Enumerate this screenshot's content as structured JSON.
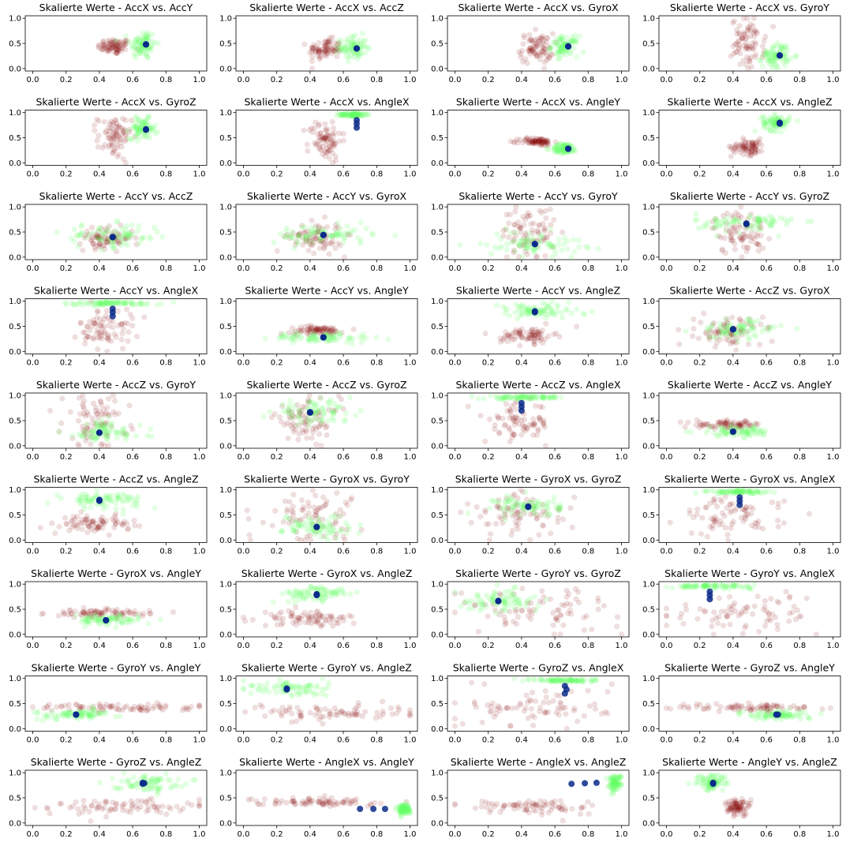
{
  "figure": {
    "colors": {
      "cluster_dark": "#800000",
      "cluster_light": "#66ff66",
      "centroid": "#0a2a8a"
    }
  },
  "chart_data": {
    "type": "scatter",
    "features": [
      "AccX",
      "AccY",
      "AccZ",
      "GyroX",
      "GyroY",
      "GyroZ",
      "AngleX",
      "AngleY",
      "AngleZ"
    ],
    "title_prefix": "Skalierte Werte - ",
    "xlim": [
      0,
      1
    ],
    "ylim": [
      0,
      1
    ],
    "xticks": [
      "0.0",
      "0.2",
      "0.4",
      "0.6",
      "0.8",
      "1.0"
    ],
    "yticks": [
      "0.0",
      "0.5",
      "1.0"
    ],
    "clusters": [
      {
        "color": "#800000",
        "center": {
          "AccX": 0.49,
          "AccY": 0.44,
          "AccZ": 0.38,
          "GyroX": 0.4,
          "GyroY": 0.5,
          "GyroZ": 0.5,
          "AngleX": 0.45,
          "AngleY": 0.42,
          "AngleZ": 0.32
        },
        "spread": {
          "AccX": 0.05,
          "AccY": 0.08,
          "AccZ": 0.1,
          "GyroX": 0.15,
          "GyroY": 0.25,
          "GyroZ": 0.22,
          "AngleX": 0.2,
          "AngleY": 0.04,
          "AngleZ": 0.08
        }
      },
      {
        "color": "#66ff66",
        "center": {
          "AccX": 0.66,
          "AccY": 0.48,
          "AccZ": 0.42,
          "GyroX": 0.44,
          "GyroY": 0.27,
          "GyroZ": 0.68,
          "AngleX": 0.96,
          "AngleY": 0.28,
          "AngleZ": 0.8
        },
        "spread": {
          "AccX": 0.04,
          "AccY": 0.15,
          "AccZ": 0.12,
          "GyroX": 0.1,
          "GyroY": 0.12,
          "GyroZ": 0.1,
          "AngleX": 0.02,
          "AngleY": 0.05,
          "AngleZ": 0.08
        }
      }
    ],
    "centroids": [
      {
        "AccX": 0.68,
        "AccY": 0.48,
        "AccZ": 0.4,
        "GyroX": 0.44,
        "GyroY": 0.26,
        "GyroZ": 0.67,
        "AngleX": 0.78,
        "AngleY": 0.28,
        "AngleZ": 0.79
      },
      {
        "AccX": 0.68,
        "AccY": 0.48,
        "AccZ": 0.4,
        "GyroX": 0.44,
        "GyroY": 0.26,
        "GyroZ": 0.66,
        "AngleX": 0.7,
        "AngleY": 0.28,
        "AngleZ": 0.78
      },
      {
        "AccX": 0.68,
        "AccY": 0.48,
        "AccZ": 0.4,
        "GyroX": 0.44,
        "GyroY": 0.26,
        "GyroZ": 0.66,
        "AngleX": 0.85,
        "AngleY": 0.28,
        "AngleZ": 0.8
      }
    ],
    "subplots": [
      {
        "title": "Skalierte Werte - AccX vs. AccY",
        "x": "AccX",
        "y": "AccY"
      },
      {
        "title": "Skalierte Werte - AccX vs. AccZ",
        "x": "AccX",
        "y": "AccZ"
      },
      {
        "title": "Skalierte Werte - AccX vs. GyroX",
        "x": "AccX",
        "y": "GyroX"
      },
      {
        "title": "Skalierte Werte - AccX vs. GyroY",
        "x": "AccX",
        "y": "GyroY"
      },
      {
        "title": "Skalierte Werte - AccX vs. GyroZ",
        "x": "AccX",
        "y": "GyroZ"
      },
      {
        "title": "Skalierte Werte - AccX vs. AngleX",
        "x": "AccX",
        "y": "AngleX"
      },
      {
        "title": "Skalierte Werte - AccX vs. AngleY",
        "x": "AccX",
        "y": "AngleY"
      },
      {
        "title": "Skalierte Werte - AccX vs. AngleZ",
        "x": "AccX",
        "y": "AngleZ"
      },
      {
        "title": "Skalierte Werte - AccY vs. AccZ",
        "x": "AccY",
        "y": "AccZ"
      },
      {
        "title": "Skalierte Werte - AccY vs. GyroX",
        "x": "AccY",
        "y": "GyroX"
      },
      {
        "title": "Skalierte Werte - AccY vs. GyroY",
        "x": "AccY",
        "y": "GyroY"
      },
      {
        "title": "Skalierte Werte - AccY vs. GyroZ",
        "x": "AccY",
        "y": "GyroZ"
      },
      {
        "title": "Skalierte Werte - AccY vs. AngleX",
        "x": "AccY",
        "y": "AngleX"
      },
      {
        "title": "Skalierte Werte - AccY vs. AngleY",
        "x": "AccY",
        "y": "AngleY"
      },
      {
        "title": "Skalierte Werte - AccY vs. AngleZ",
        "x": "AccY",
        "y": "AngleZ"
      },
      {
        "title": "Skalierte Werte - AccZ vs. GyroX",
        "x": "AccZ",
        "y": "GyroX"
      },
      {
        "title": "Skalierte Werte - AccZ vs. GyroY",
        "x": "AccZ",
        "y": "GyroY"
      },
      {
        "title": "Skalierte Werte - AccZ vs. GyroZ",
        "x": "AccZ",
        "y": "GyroZ"
      },
      {
        "title": "Skalierte Werte - AccZ vs. AngleX",
        "x": "AccZ",
        "y": "AngleX"
      },
      {
        "title": "Skalierte Werte - AccZ vs. AngleY",
        "x": "AccZ",
        "y": "AngleY"
      },
      {
        "title": "Skalierte Werte - AccZ vs. AngleZ",
        "x": "AccZ",
        "y": "AngleZ"
      },
      {
        "title": "Skalierte Werte - GyroX vs. GyroY",
        "x": "GyroX",
        "y": "GyroY"
      },
      {
        "title": "Skalierte Werte - GyroX vs. GyroZ",
        "x": "GyroX",
        "y": "GyroZ"
      },
      {
        "title": "Skalierte Werte - GyroX vs. AngleX",
        "x": "GyroX",
        "y": "AngleX"
      },
      {
        "title": "Skalierte Werte - GyroX vs. AngleY",
        "x": "GyroX",
        "y": "AngleY"
      },
      {
        "title": "Skalierte Werte - GyroX vs. AngleZ",
        "x": "GyroX",
        "y": "AngleZ"
      },
      {
        "title": "Skalierte Werte - GyroY vs. GyroZ",
        "x": "GyroY",
        "y": "GyroZ"
      },
      {
        "title": "Skalierte Werte - GyroY vs. AngleX",
        "x": "GyroY",
        "y": "AngleX"
      },
      {
        "title": "Skalierte Werte - GyroY vs. AngleY",
        "x": "GyroY",
        "y": "AngleY"
      },
      {
        "title": "Skalierte Werte - GyroY vs. AngleZ",
        "x": "GyroY",
        "y": "AngleZ"
      },
      {
        "title": "Skalierte Werte - GyroZ vs. AngleX",
        "x": "GyroZ",
        "y": "AngleX"
      },
      {
        "title": "Skalierte Werte - GyroZ vs. AngleY",
        "x": "GyroZ",
        "y": "AngleY"
      },
      {
        "title": "Skalierte Werte - GyroZ vs. AngleZ",
        "x": "GyroZ",
        "y": "AngleZ"
      },
      {
        "title": "Skalierte Werte - AngleX vs. AngleY",
        "x": "AngleX",
        "y": "AngleY"
      },
      {
        "title": "Skalierte Werte - AngleX vs. AngleZ",
        "x": "AngleX",
        "y": "AngleZ"
      },
      {
        "title": "Skalierte Werte - AngleY vs. AngleZ",
        "x": "AngleY",
        "y": "AngleZ"
      }
    ]
  }
}
